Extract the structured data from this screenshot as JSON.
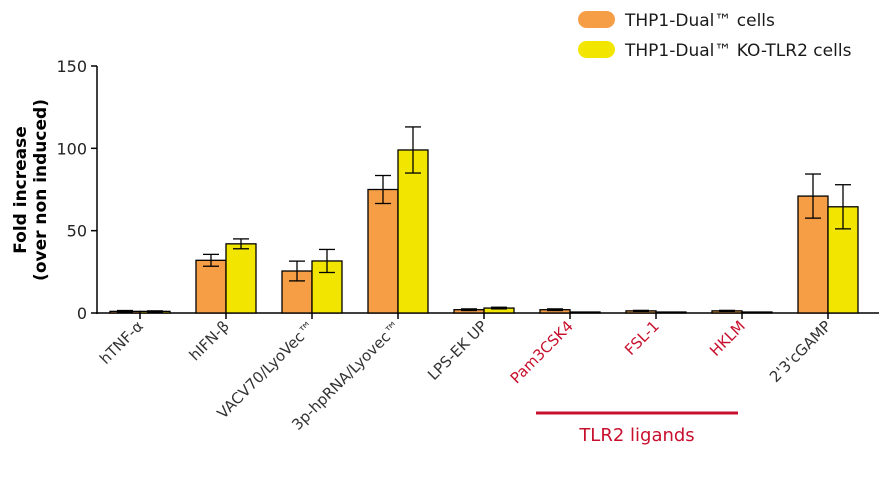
{
  "chart_data": {
    "type": "bar",
    "ylabel_line1": "Fold increase",
    "ylabel_line2": "(over non induced)",
    "ylim": [
      0,
      150
    ],
    "yticks": [
      0,
      50,
      100,
      150
    ],
    "grid": false,
    "legend_position": "top-right",
    "categories": [
      "hTNF-α",
      "hIFN-β",
      "VACV70/LyoVec™",
      "3p-hpRNA/Lyovec™",
      "LPS-EK UP",
      "Pam3CSK4",
      "FSL-1",
      "HKLM",
      "2'3'cGAMP"
    ],
    "category_colors": [
      "#333333",
      "#333333",
      "#333333",
      "#333333",
      "#333333",
      "#c8102e",
      "#c8102e",
      "#c8102e",
      "#333333"
    ],
    "series": [
      {
        "name": "THP1-Dual™ cells",
        "color": "#f59e46",
        "values": [
          1,
          32,
          25.5,
          75,
          2,
          2,
          1.3,
          1.3,
          71
        ],
        "errors": [
          0.5,
          3.6,
          6,
          8.5,
          0.5,
          0.5,
          0.3,
          0.3,
          13.4
        ]
      },
      {
        "name": "THP1-Dual™ KO-TLR2 cells",
        "color": "#f2e600",
        "values": [
          1,
          42,
          31.6,
          99,
          3,
          0.6,
          0.6,
          0.6,
          64.5
        ],
        "errors": [
          0.3,
          3,
          7,
          14,
          0.5,
          0,
          0,
          0,
          13.4
        ]
      }
    ],
    "annotation": {
      "label": "TLR2 ligands",
      "color": "#c8102e",
      "spans": [
        "Pam3CSK4",
        "HKLM"
      ]
    }
  }
}
